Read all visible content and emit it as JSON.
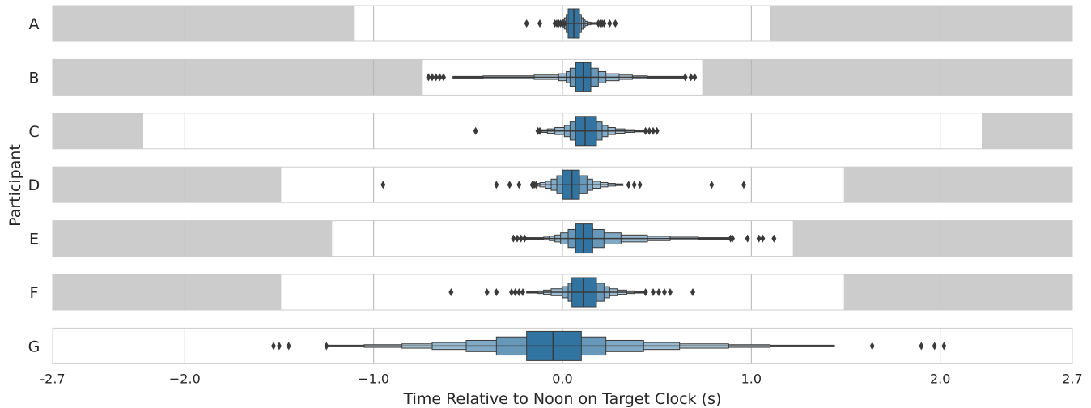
{
  "chart_data": {
    "type": "boxenplot",
    "orientation": "horizontal",
    "xlabel": "Time Relative to Noon on Target Clock (s)",
    "ylabel": "Participant",
    "xlim": [
      -2.7,
      2.7
    ],
    "xticks": [
      {
        "value": -2.7,
        "label": "-2.7"
      },
      {
        "value": -2.0,
        "label": "−2.0"
      },
      {
        "value": -1.0,
        "label": "−1.0"
      },
      {
        "value": 0.0,
        "label": "0.0"
      },
      {
        "value": 1.0,
        "label": "1.0"
      },
      {
        "value": 2.0,
        "label": "2.0"
      },
      {
        "value": 2.7,
        "label": "2.7"
      }
    ],
    "grid": true,
    "colors": {
      "shade": "#cccccc",
      "grid": "#b4b4b4",
      "frame": "#cccccc",
      "box": "#3274a1",
      "edge": "#3a3a3a",
      "outlier": "#3a3a3a"
    },
    "participants": [
      {
        "name": "A",
        "shade": [
          [
            -2.7,
            -1.1
          ],
          [
            1.1,
            2.7
          ]
        ],
        "median": 0.06,
        "boxes": [
          [
            0.03,
            0.09
          ],
          [
            0.02,
            0.1
          ],
          [
            0.01,
            0.11
          ],
          [
            0.0,
            0.12
          ],
          [
            -0.01,
            0.13
          ],
          [
            -0.02,
            0.15
          ],
          [
            -0.03,
            0.18
          ]
        ],
        "outliers": [
          -0.19,
          -0.12,
          -0.04,
          -0.03,
          -0.02,
          -0.01,
          0.0,
          0.01,
          0.19,
          0.2,
          0.21,
          0.22,
          0.25,
          0.28
        ]
      },
      {
        "name": "B",
        "shade": [
          [
            -2.7,
            -0.74
          ],
          [
            0.74,
            2.7
          ]
        ],
        "median": 0.11,
        "boxes": [
          [
            0.07,
            0.15
          ],
          [
            0.04,
            0.19
          ],
          [
            0.02,
            0.23
          ],
          [
            -0.02,
            0.3
          ],
          [
            -0.15,
            0.37
          ],
          [
            -0.42,
            0.45
          ],
          [
            -0.58,
            0.64
          ]
        ],
        "outliers": [
          -0.71,
          -0.69,
          -0.67,
          -0.65,
          -0.63,
          0.65,
          0.68,
          0.7
        ]
      },
      {
        "name": "C",
        "shade": [
          [
            -2.7,
            -2.22
          ],
          [
            2.22,
            2.7
          ]
        ],
        "median": 0.12,
        "boxes": [
          [
            0.07,
            0.18
          ],
          [
            0.04,
            0.21
          ],
          [
            0.01,
            0.24
          ],
          [
            -0.04,
            0.28
          ],
          [
            -0.08,
            0.33
          ],
          [
            -0.11,
            0.38
          ],
          [
            -0.12,
            0.43
          ]
        ],
        "outliers": [
          -0.46,
          -0.13,
          -0.12,
          0.44,
          0.46,
          0.48,
          0.5
        ]
      },
      {
        "name": "D",
        "shade": [
          [
            -2.7,
            -1.49
          ],
          [
            1.49,
            2.7
          ]
        ],
        "median": 0.05,
        "boxes": [
          [
            0.0,
            0.09
          ],
          [
            -0.03,
            0.13
          ],
          [
            -0.06,
            0.16
          ],
          [
            -0.09,
            0.2
          ],
          [
            -0.12,
            0.24
          ],
          [
            -0.14,
            0.28
          ],
          [
            -0.15,
            0.32
          ]
        ],
        "outliers": [
          -0.95,
          -0.35,
          -0.28,
          -0.23,
          -0.16,
          -0.15,
          -0.14,
          0.35,
          0.38,
          0.41,
          0.79,
          0.96
        ]
      },
      {
        "name": "E",
        "shade": [
          [
            -2.7,
            -1.22
          ],
          [
            1.22,
            2.7
          ]
        ],
        "median": 0.11,
        "boxes": [
          [
            0.07,
            0.16
          ],
          [
            0.03,
            0.22
          ],
          [
            -0.01,
            0.31
          ],
          [
            -0.04,
            0.45
          ],
          [
            -0.07,
            0.57
          ],
          [
            -0.1,
            0.72
          ],
          [
            -0.19,
            0.89
          ]
        ],
        "outliers": [
          -0.26,
          -0.24,
          -0.22,
          -0.2,
          0.89,
          0.9,
          0.98,
          1.04,
          1.06,
          1.12
        ]
      },
      {
        "name": "F",
        "shade": [
          [
            -2.7,
            -1.49
          ],
          [
            1.49,
            2.7
          ]
        ],
        "median": 0.11,
        "boxes": [
          [
            0.05,
            0.18
          ],
          [
            0.03,
            0.22
          ],
          [
            0.0,
            0.25
          ],
          [
            -0.06,
            0.29
          ],
          [
            -0.1,
            0.34
          ],
          [
            -0.13,
            0.38
          ],
          [
            -0.19,
            0.44
          ]
        ],
        "outliers": [
          -0.59,
          -0.4,
          -0.35,
          -0.27,
          -0.25,
          -0.23,
          -0.21,
          0.44,
          0.48,
          0.51,
          0.54,
          0.57,
          0.69
        ]
      },
      {
        "name": "G",
        "shade": [],
        "median": -0.05,
        "boxes": [
          [
            -0.19,
            0.1
          ],
          [
            -0.35,
            0.23
          ],
          [
            -0.51,
            0.43
          ],
          [
            -0.69,
            0.62
          ],
          [
            -0.85,
            0.88
          ],
          [
            -1.05,
            1.1
          ],
          [
            -1.25,
            1.44
          ]
        ],
        "outliers": [
          -1.53,
          -1.5,
          -1.45,
          -1.25,
          1.64,
          1.9,
          1.97,
          2.02
        ]
      }
    ]
  }
}
